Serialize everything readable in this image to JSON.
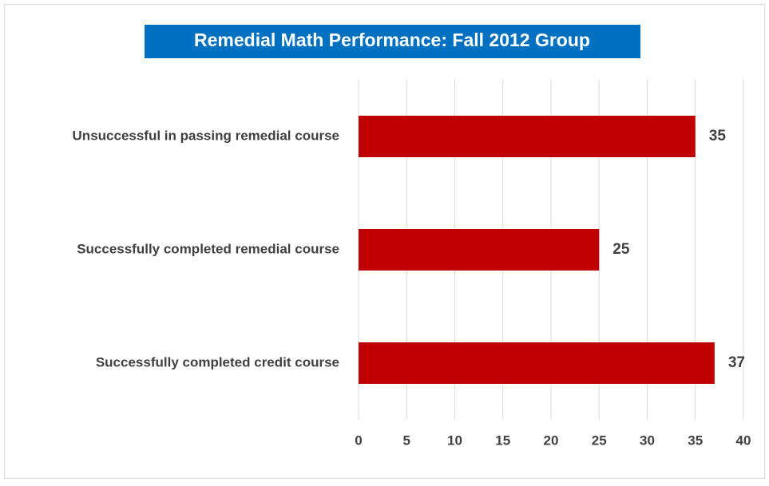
{
  "chart_data": {
    "type": "barh",
    "title": "Remedial Math Performance: Fall 2012 Group",
    "categories": [
      "Unsuccessful in passing remedial course",
      "Successfully completed remedial course",
      "Successfully completed credit course"
    ],
    "values": [
      35,
      25,
      37
    ],
    "color": "#c00000",
    "xlim": [
      0,
      40
    ],
    "xticks": [
      0,
      5,
      10,
      15,
      20,
      25,
      30,
      35,
      40
    ],
    "grid": true
  }
}
